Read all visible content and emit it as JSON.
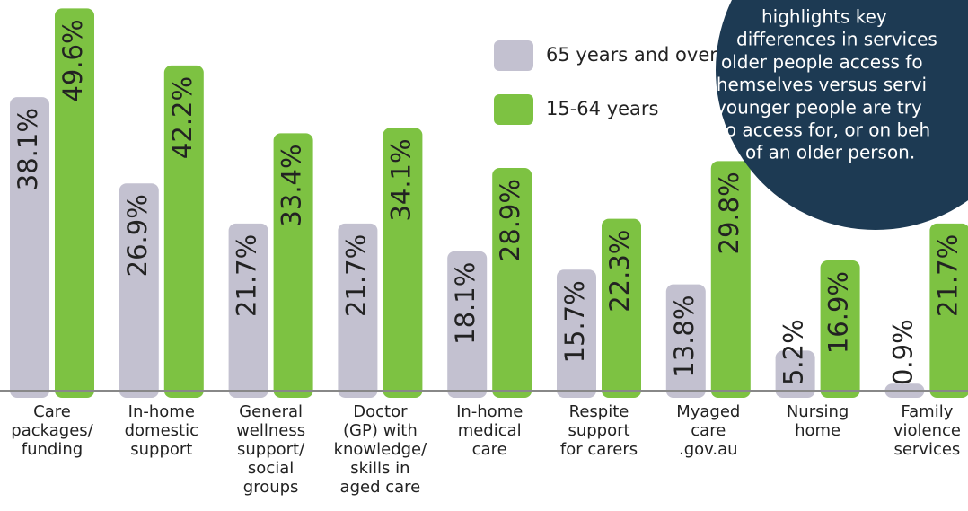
{
  "chart_data": {
    "type": "bar",
    "categories": [
      "Care\npackages/\nfunding",
      "In-home\ndomestic\nsupport",
      "General\nwellness\nsupport/\nsocial\ngroups",
      "Doctor\n(GP) with\nknowledge/\nskills in\naged care",
      "In-home\nmedical\ncare",
      "Respite\nsupport\nfor carers",
      "Myaged\ncare\n.gov.au",
      "Nursing\nhome",
      "Family\nviolence\nservices"
    ],
    "series": [
      {
        "name": "65 years and over",
        "color": "#c3c1d0",
        "values": [
          38.1,
          26.9,
          21.7,
          21.7,
          18.1,
          15.7,
          13.8,
          5.2,
          0.9
        ],
        "value_labels": [
          "38.1%",
          "26.9%",
          "21.7%",
          "21.7%",
          "18.1%",
          "15.7%",
          "13.8%",
          "5.2%",
          "0.9%"
        ]
      },
      {
        "name": "15-64 years",
        "color": "#7dc242",
        "values": [
          49.6,
          42.2,
          33.4,
          34.1,
          28.9,
          22.3,
          29.8,
          16.9,
          21.7
        ],
        "value_labels": [
          "49.6%",
          "42.2%",
          "33.4%",
          "34.1%",
          "28.9%",
          "22.3%",
          "29.8%",
          "16.9%",
          "21.7%"
        ]
      }
    ],
    "ylim": [
      0,
      50
    ],
    "annotation": [
      "highlights key",
      "differences  in services",
      "older people access fo",
      "themselves versus servi",
      "younger people are try",
      "to access for, or on beh",
      "of an older person."
    ]
  }
}
